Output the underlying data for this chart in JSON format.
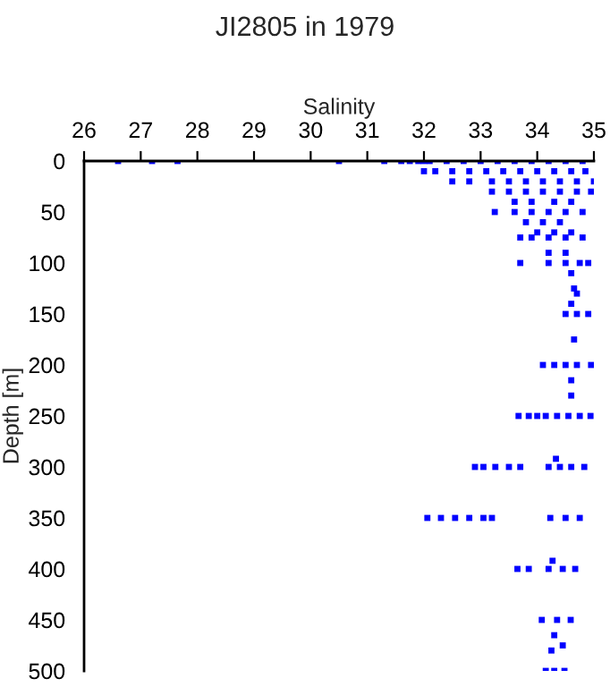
{
  "chart_data": {
    "type": "scatter",
    "title": "JI2805 in 1979",
    "xlabel": "Salinity",
    "ylabel": "Depth [m]",
    "xlim": [
      26,
      35
    ],
    "xticks": [
      26,
      27,
      28,
      29,
      30,
      31,
      32,
      33,
      34,
      35
    ],
    "ylim": [
      500,
      0
    ],
    "yticks": [
      0,
      50,
      100,
      150,
      200,
      250,
      300,
      350,
      400,
      450,
      500
    ],
    "grid": false,
    "marker": "square",
    "series": [
      {
        "color": "#0000ff",
        "x": [
          26.6,
          27.2,
          27.65,
          30.5,
          31.3,
          31.6,
          31.75,
          31.9,
          32.0,
          32.1,
          32.4,
          32.7,
          33.0,
          33.3,
          33.6,
          33.9,
          34.2,
          34.5,
          34.8,
          32.0,
          32.2,
          32.5,
          32.8,
          33.1,
          33.4,
          33.7,
          34.0,
          34.3,
          34.6,
          34.85,
          32.5,
          32.8,
          33.2,
          33.5,
          33.8,
          34.1,
          34.4,
          34.7,
          35.0,
          33.2,
          33.5,
          33.8,
          34.1,
          34.4,
          34.7,
          34.95,
          33.6,
          33.9,
          34.3,
          34.6,
          33.25,
          33.6,
          33.9,
          34.2,
          34.5,
          34.8,
          33.8,
          34.1,
          34.4,
          34.0,
          34.3,
          34.6,
          33.7,
          33.9,
          34.2,
          34.5,
          34.8,
          34.2,
          34.5,
          33.7,
          34.2,
          34.5,
          34.75,
          34.9,
          34.6,
          34.65,
          34.7,
          34.6,
          34.5,
          34.7,
          34.9,
          34.65,
          34.1,
          34.3,
          34.5,
          34.7,
          34.95,
          34.6,
          34.6,
          33.67,
          33.85,
          34.0,
          34.15,
          34.35,
          34.55,
          34.75,
          34.94,
          34.33,
          32.9,
          33.05,
          33.26,
          33.5,
          33.7,
          34.2,
          34.4,
          34.6,
          34.83,
          32.06,
          32.3,
          32.55,
          32.8,
          33.05,
          33.2,
          34.23,
          34.5,
          34.75,
          34.27,
          33.65,
          33.85,
          34.2,
          34.45,
          34.67,
          34.08,
          34.35,
          34.59,
          34.3,
          34.45,
          34.25,
          34.15,
          34.3,
          34.48
        ],
        "values": [
          0,
          0,
          0,
          0,
          0,
          0,
          0,
          0,
          0,
          0,
          0,
          0,
          0,
          0,
          0,
          0,
          0,
          0,
          0,
          10,
          10,
          10,
          10,
          10,
          10,
          10,
          10,
          10,
          10,
          10,
          20,
          20,
          20,
          20,
          20,
          20,
          20,
          20,
          20,
          30,
          30,
          30,
          30,
          30,
          30,
          30,
          40,
          40,
          40,
          40,
          50,
          50,
          50,
          50,
          50,
          50,
          60,
          60,
          60,
          70,
          70,
          70,
          75,
          75,
          75,
          75,
          75,
          90,
          90,
          100,
          100,
          100,
          100,
          100,
          110,
          125,
          130,
          140,
          150,
          150,
          150,
          175,
          200,
          200,
          200,
          200,
          200,
          215,
          230,
          250,
          250,
          250,
          250,
          250,
          250,
          250,
          250,
          292,
          300,
          300,
          300,
          300,
          300,
          300,
          300,
          300,
          300,
          350,
          350,
          350,
          350,
          350,
          350,
          350,
          350,
          350,
          392,
          400,
          400,
          400,
          400,
          400,
          450,
          450,
          450,
          465,
          475,
          480,
          500,
          500,
          500
        ]
      }
    ]
  }
}
